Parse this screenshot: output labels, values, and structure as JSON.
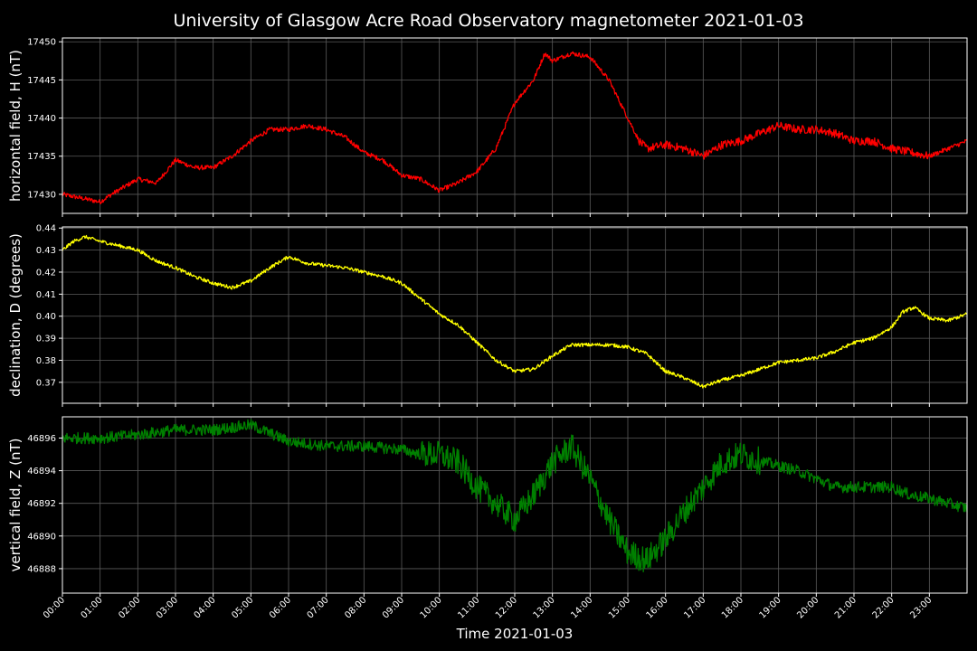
{
  "chart_data": {
    "type": "line",
    "title": "University of Glasgow Acre Road Observatory magnetometer 2021-01-03",
    "xlabel": "Time 2021-01-03",
    "grid": true,
    "x_ticks": [
      "00:00",
      "01:00",
      "02:00",
      "03:00",
      "04:00",
      "05:00",
      "06:00",
      "07:00",
      "08:00",
      "09:00",
      "10:00",
      "11:00",
      "12:00",
      "13:00",
      "14:00",
      "15:00",
      "16:00",
      "17:00",
      "18:00",
      "19:00",
      "20:00",
      "21:00",
      "22:00",
      "23:00"
    ],
    "panels": [
      {
        "ylabel": "horizontal field, H (nT)",
        "color": "#ff0000",
        "ylim": [
          17427.5,
          17450.5
        ],
        "yticks": [
          17430,
          17435,
          17440,
          17445,
          17450
        ],
        "ytick_labels": [
          "17430",
          "17435",
          "17440",
          "17445",
          "17450"
        ],
        "noise": 0.3,
        "x_hours": [
          0,
          0.5,
          1,
          1.3,
          2,
          2.5,
          3,
          3.5,
          4,
          4.5,
          5,
          5.5,
          6,
          6.5,
          7,
          7.5,
          8,
          8.5,
          9,
          9.5,
          10,
          10.5,
          11,
          11.5,
          12,
          12.5,
          12.8,
          13,
          13.5,
          14,
          14.5,
          15,
          15.3,
          15.5,
          16,
          16.5,
          17,
          17.5,
          18,
          18.5,
          19,
          19.5,
          20,
          20.5,
          21,
          21.5,
          22,
          22.5,
          23,
          23.5,
          24
        ],
        "values": [
          17430,
          17429.5,
          17429,
          17430,
          17432,
          17431.5,
          17434.5,
          17433.5,
          17433.5,
          17435,
          17437,
          17438.5,
          17438.5,
          17439,
          17438.5,
          17437.5,
          17435.5,
          17434.5,
          17432.5,
          17432,
          17430.5,
          17431.5,
          17433,
          17436,
          17442,
          17445,
          17448.5,
          17447.5,
          17448.5,
          17448,
          17445,
          17440,
          17437,
          17436,
          17436.5,
          17436,
          17435,
          17436.5,
          17437,
          17438,
          17439,
          17438.5,
          17438.5,
          17438,
          17437,
          17437,
          17436,
          17435.5,
          17435,
          17436,
          17437
        ]
      },
      {
        "ylabel": "declination, D (degrees)",
        "color": "#ffff00",
        "ylim": [
          0.3605,
          0.4405
        ],
        "yticks": [
          0.37,
          0.38,
          0.39,
          0.4,
          0.41,
          0.42,
          0.43,
          0.44
        ],
        "ytick_labels": [
          "0.37",
          "0.38",
          "0.39",
          "0.40",
          "0.41",
          "0.42",
          "0.43",
          "0.44"
        ],
        "noise": 0.0008,
        "x_hours": [
          0,
          0.3,
          0.6,
          1,
          1.5,
          2,
          2.5,
          3,
          3.5,
          4,
          4.5,
          5,
          5.5,
          6,
          6.5,
          7,
          7.5,
          8,
          8.5,
          9,
          9.5,
          10,
          10.5,
          11,
          11.5,
          12,
          12.5,
          13,
          13.5,
          14,
          14.5,
          15,
          15.5,
          16,
          16.5,
          17,
          17.5,
          18,
          18.5,
          19,
          19.5,
          20,
          20.5,
          21,
          21.5,
          22,
          22.3,
          22.6,
          23,
          23.5,
          24
        ],
        "values": [
          0.43,
          0.434,
          0.436,
          0.434,
          0.432,
          0.43,
          0.425,
          0.422,
          0.418,
          0.415,
          0.413,
          0.416,
          0.422,
          0.427,
          0.424,
          0.423,
          0.422,
          0.42,
          0.418,
          0.415,
          0.408,
          0.401,
          0.396,
          0.388,
          0.38,
          0.375,
          0.376,
          0.382,
          0.387,
          0.387,
          0.387,
          0.386,
          0.383,
          0.375,
          0.372,
          0.368,
          0.371,
          0.373,
          0.376,
          0.379,
          0.38,
          0.381,
          0.384,
          0.388,
          0.39,
          0.395,
          0.402,
          0.404,
          0.399,
          0.398,
          0.401
        ]
      },
      {
        "ylabel": "vertical field, Z (nT)",
        "color": "#008000",
        "ylim": [
          46886.5,
          46897.3
        ],
        "yticks": [
          46888,
          46890,
          46892,
          46894,
          46896
        ],
        "ytick_labels": [
          "46888",
          "46890",
          "46892",
          "46894",
          "46896"
        ],
        "noise": 0.35,
        "x_hours": [
          0,
          1,
          2,
          3,
          4,
          5,
          5.5,
          6,
          7,
          8,
          9,
          9.5,
          10,
          10.5,
          11,
          11.5,
          12,
          12.5,
          13,
          13.5,
          14,
          14.5,
          15,
          15.5,
          16,
          16.5,
          17,
          17.5,
          18,
          18.5,
          19,
          19.5,
          20,
          20.5,
          21,
          21.5,
          22,
          22.5,
          23,
          23.5,
          24
        ],
        "values": [
          46896,
          46896,
          46896.2,
          46896.5,
          46896.5,
          46896.8,
          46896.3,
          46895.8,
          46895.5,
          46895.5,
          46895.3,
          46895,
          46895,
          46894.5,
          46893,
          46892,
          46891,
          46892.5,
          46894.5,
          46895.5,
          46893.5,
          46891,
          46889,
          46888.5,
          46889.8,
          46891.5,
          46893,
          46894.5,
          46895,
          46894.6,
          46894.3,
          46894,
          46893.5,
          46893,
          46893,
          46893,
          46893,
          46892.5,
          46892.3,
          46892,
          46891.7
        ]
      }
    ]
  }
}
